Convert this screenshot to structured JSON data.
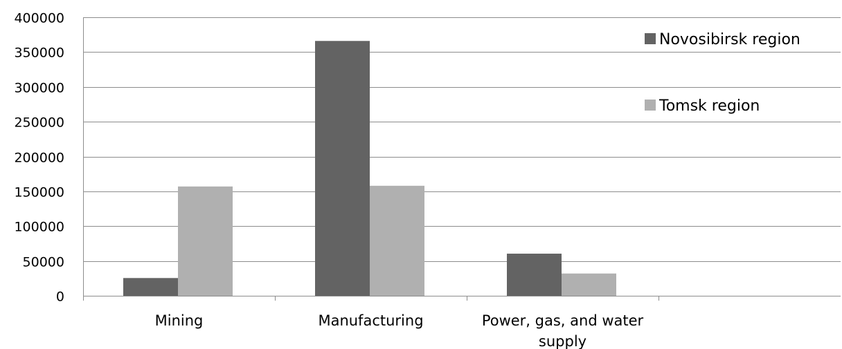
{
  "chart_data": {
    "type": "bar",
    "title": "",
    "xlabel": "",
    "ylabel": "",
    "categories": [
      "Mining",
      "Manufacturing",
      "Power, gas, and water supply"
    ],
    "series": [
      {
        "name": "Novosibirsk region",
        "color": "#636363",
        "values": [
          25500,
          366000,
          60500
        ]
      },
      {
        "name": "Tomsk region",
        "color": "#b0b0b0",
        "values": [
          157000,
          158000,
          32000
        ]
      }
    ],
    "ylim": [
      0,
      400000
    ],
    "yticks": [
      0,
      50000,
      100000,
      150000,
      200000,
      250000,
      300000,
      350000,
      400000
    ],
    "grid": true,
    "legend_position": "top-right"
  }
}
